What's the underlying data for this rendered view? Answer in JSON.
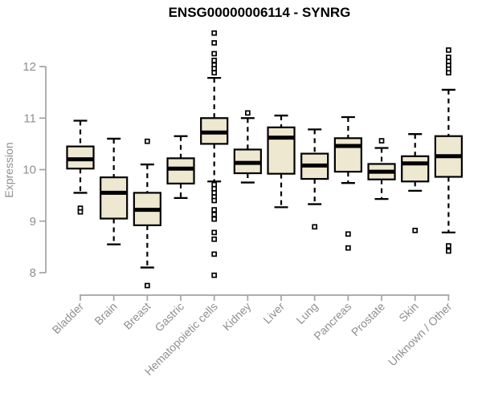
{
  "chart_data": {
    "type": "boxplot",
    "title": "ENSG00000006114 - SYNRG",
    "ylabel": "Expression",
    "xlabel": "",
    "ylim": [
      7.6,
      12.8
    ],
    "y_ticks": [
      8,
      9,
      10,
      11,
      12
    ],
    "grid": false,
    "legend": "none",
    "categories": [
      "Bladder",
      "Brain",
      "Breast",
      "Gastric",
      "Hematopoietic cells",
      "Kidney",
      "Liver",
      "Lung",
      "Pancreas",
      "Prostate",
      "Skin",
      "Unknown / Other"
    ],
    "boxes": [
      {
        "category": "Bladder",
        "low": 9.55,
        "q1": 10.02,
        "median": 10.2,
        "q3": 10.45,
        "high": 10.95,
        "outliers": [
          9.25,
          9.18
        ]
      },
      {
        "category": "Brain",
        "low": 8.55,
        "q1": 9.05,
        "median": 9.55,
        "q3": 9.85,
        "high": 10.6,
        "outliers": []
      },
      {
        "category": "Breast",
        "low": 8.1,
        "q1": 8.92,
        "median": 9.22,
        "q3": 9.55,
        "high": 10.1,
        "outliers": [
          10.55,
          7.75
        ]
      },
      {
        "category": "Gastric",
        "low": 9.45,
        "q1": 9.73,
        "median": 10.02,
        "q3": 10.22,
        "high": 10.65,
        "outliers": []
      },
      {
        "category": "Hematopoietic cells",
        "low": 9.77,
        "q1": 10.5,
        "median": 10.72,
        "q3": 11.0,
        "high": 11.78,
        "outliers": [
          12.65,
          12.46,
          12.25,
          12.12,
          12.03,
          11.96,
          11.88,
          9.71,
          9.63,
          9.55,
          9.47,
          9.4,
          9.22,
          9.13,
          9.04,
          8.78,
          8.65,
          8.36,
          7.95
        ]
      },
      {
        "category": "Kidney",
        "low": 9.75,
        "q1": 9.93,
        "median": 10.13,
        "q3": 10.39,
        "high": 11.0,
        "outliers": [
          11.1
        ]
      },
      {
        "category": "Liver",
        "low": 9.27,
        "q1": 9.92,
        "median": 10.62,
        "q3": 10.82,
        "high": 11.05,
        "outliers": []
      },
      {
        "category": "Lung",
        "low": 9.33,
        "q1": 9.82,
        "median": 10.08,
        "q3": 10.31,
        "high": 10.78,
        "outliers": [
          8.89
        ]
      },
      {
        "category": "Pancreas",
        "low": 9.74,
        "q1": 9.96,
        "median": 10.46,
        "q3": 10.61,
        "high": 11.02,
        "outliers": [
          8.75,
          8.48
        ]
      },
      {
        "category": "Prostate",
        "low": 9.43,
        "q1": 9.81,
        "median": 9.96,
        "q3": 10.11,
        "high": 10.42,
        "outliers": [
          10.56
        ]
      },
      {
        "category": "Skin",
        "low": 9.59,
        "q1": 9.77,
        "median": 10.12,
        "q3": 10.26,
        "high": 10.69,
        "outliers": [
          8.82
        ]
      },
      {
        "category": "Unknown / Other",
        "low": 8.78,
        "q1": 9.86,
        "median": 10.26,
        "q3": 10.65,
        "high": 11.55,
        "outliers": [
          12.32,
          12.18,
          12.1,
          12.02,
          11.95,
          11.88,
          8.52,
          8.42
        ]
      }
    ],
    "colors": {
      "box_fill": "#EEE8D0",
      "box_stroke": "#000000",
      "median": "#000000",
      "whisker": "#000000",
      "outlier_stroke": "#000000",
      "outlier_fill": "#FFFFFF",
      "axis": "#A3A3A3",
      "text": "#8F8F8F",
      "title": "#000000",
      "background": "#FFFFFF"
    }
  }
}
